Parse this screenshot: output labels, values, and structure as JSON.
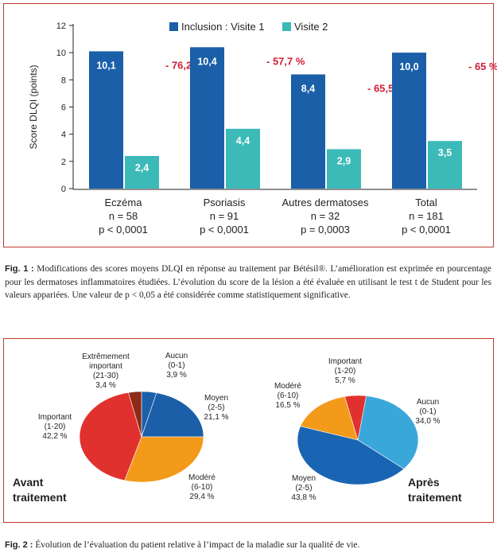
{
  "chart_data": [
    {
      "type": "bar",
      "ylabel": "Score DLQI (points)",
      "ylim": [
        0,
        12
      ],
      "yticks": [
        0,
        2,
        4,
        6,
        8,
        10,
        12
      ],
      "legend_position": "top-right",
      "categories": [
        {
          "name": "Eczéma",
          "n": "n = 58",
          "p": "p < 0,0001"
        },
        {
          "name": "Psoriasis",
          "n": "n = 91",
          "p": "p < 0,0001"
        },
        {
          "name": "Autres dermatoses",
          "n": "n = 32",
          "p": "p = 0,0003"
        },
        {
          "name": "Total",
          "n": "n = 181",
          "p": "p < 0,0001"
        }
      ],
      "series": [
        {
          "name": "Inclusion : Visite 1",
          "color": "#1a5fa8",
          "values": [
            10.1,
            10.4,
            8.4,
            10.0
          ],
          "labels": [
            "10,1",
            "10,4",
            "8,4",
            "10,0"
          ]
        },
        {
          "name": "Visite 2",
          "color": "#3bbab8",
          "values": [
            2.4,
            4.4,
            2.9,
            3.5
          ],
          "labels": [
            "2,4",
            "4,4",
            "2,9",
            "3,5"
          ]
        }
      ],
      "changes": [
        "- 76,2 %",
        "- 57,7 %",
        "- 65,5 %",
        "- 65 %"
      ],
      "change_color": "#d0203a"
    },
    {
      "type": "pie",
      "title": "Avant traitement",
      "slices": [
        {
          "name": "Aucun",
          "range": "(0-1)",
          "value": 3.9,
          "label": "3,9 %",
          "color": "#1a5fa8"
        },
        {
          "name": "Moyen",
          "range": "(2-5)",
          "value": 21.1,
          "label": "21,1 %",
          "color": "#1a5fa8"
        },
        {
          "name": "Modéré",
          "range": "(6-10)",
          "value": 29.4,
          "label": "29,4 %",
          "color": "#f39a1b"
        },
        {
          "name": "Important",
          "range": "(1-20)",
          "value": 42.2,
          "label": "42,2 %",
          "color": "#e0312e"
        },
        {
          "name": "Extrêmement important",
          "range": "(21-30)",
          "value": 3.4,
          "label": "3,4 %",
          "color": "#8b2a17"
        }
      ]
    },
    {
      "type": "pie",
      "title": "Après traitement",
      "slices": [
        {
          "name": "Aucun",
          "range": "(0-1)",
          "value": 34.0,
          "label": "34,0 %",
          "color": "#3aa7da"
        },
        {
          "name": "Moyen",
          "range": "(2-5)",
          "value": 43.8,
          "label": "43,8 %",
          "color": "#1a65b3"
        },
        {
          "name": "Modéré",
          "range": "(6-10)",
          "value": 16.5,
          "label": "16,5 %",
          "color": "#f39a1b"
        },
        {
          "name": "Important",
          "range": "(1-20)",
          "value": 5.7,
          "label": "5,7 %",
          "color": "#e0312e"
        }
      ]
    }
  ],
  "captions": {
    "fig1_label": "Fig. 1 :",
    "fig1_text": "Modifications des scores moyens DLQI en réponse au traitement par Bétésil®. L’amélioration est exprimée en pourcentage pour les dermatoses inflammatoires étudiées. L’évolution du score de la lésion a été évaluée en utilisant le test t de Student pour les valeurs appariées. Une valeur de p < 0,05 a été considérée comme statistiquement significative.",
    "fig2_label": "Fig. 2 :",
    "fig2_text": "Évolution de l’évaluation du patient relative à l’impact de la maladie sur la qualité de vie."
  }
}
